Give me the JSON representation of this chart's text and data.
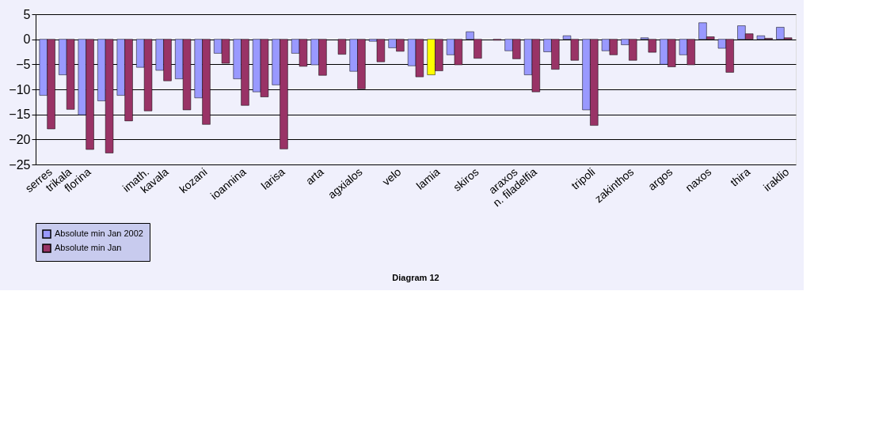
{
  "chart_data": {
    "type": "bar",
    "categories": [
      "serres",
      "trikala",
      "florina",
      null,
      null,
      "imath.",
      "kavala",
      null,
      "kozani",
      null,
      "ioannina",
      null,
      "larisa",
      null,
      "arta",
      null,
      "agxialos",
      null,
      "velo",
      null,
      "lamia",
      null,
      "skiros",
      null,
      "araxos",
      "n. filadelfia",
      null,
      null,
      "tripoli",
      null,
      "zakinthos",
      null,
      "argos",
      null,
      "naxos",
      null,
      "thira",
      null,
      "iraklio"
    ],
    "series": [
      {
        "name": "Absolute min Jan 2002",
        "color": "#9999ff",
        "colors": [
          "#9999ff",
          "#9999ff",
          "#9999ff",
          "#9999ff",
          "#9999ff",
          "#9999ff",
          "#9999ff",
          "#9999ff",
          "#9999ff",
          "#9999ff",
          "#9999ff",
          "#9999ff",
          "#9999ff",
          "#9999ff",
          "#9999ff",
          "#9999ff",
          "#9999ff",
          "#9999ff",
          "#9999ff",
          "#9999ff",
          "#ffff00",
          "#9999ff",
          "#9999ff",
          "#9999ff",
          "#9999ff",
          "#9999ff",
          "#9999ff",
          "#9999ff",
          "#9999ff",
          "#9999ff",
          "#9999ff",
          "#9999ff",
          "#9999ff",
          "#9999ff",
          "#9999ff",
          "#9999ff",
          "#9999ff",
          "#9999ff",
          "#9999ff"
        ],
        "values": [
          -11.2,
          -7.1,
          -15.1,
          -12.3,
          -11.2,
          -5.6,
          -6.2,
          -7.9,
          -11.7,
          -2.8,
          -7.9,
          -10.5,
          -9.1,
          -2.8,
          -5.1,
          null,
          -6.4,
          -0.4,
          -1.7,
          -5.3,
          -7.1,
          -3.1,
          1.5,
          null,
          -2.3,
          -7.1,
          -2.5,
          0.7,
          -14.1,
          -2.3,
          -1.1,
          0.3,
          -5.0,
          -3.1,
          3.3,
          -1.8,
          2.7,
          0.7,
          2.4
        ]
      },
      {
        "name": "Absolute min Jan",
        "color": "#993366",
        "values": [
          -17.9,
          -14.0,
          -22.0,
          -22.7,
          -16.3,
          -14.3,
          -8.3,
          -14.1,
          -17.0,
          -4.8,
          -13.2,
          -11.5,
          -21.9,
          -5.4,
          -7.2,
          -3.0,
          -9.9,
          -4.5,
          -2.4,
          -7.5,
          -6.3,
          -5.1,
          -3.8,
          -0.2,
          -3.9,
          -10.5,
          -6.0,
          -4.2,
          -17.2,
          -3.1,
          -4.2,
          -2.6,
          -5.5,
          -5.1,
          0.5,
          -6.6,
          1.1,
          0.2,
          0.3
        ]
      }
    ],
    "ylim": [
      -25,
      5
    ],
    "yticks": [
      -25,
      -20,
      -15,
      -10,
      -5,
      0,
      5
    ],
    "grid": "y",
    "legend": "bottom",
    "annotations": [
      "Diagram 12"
    ]
  }
}
